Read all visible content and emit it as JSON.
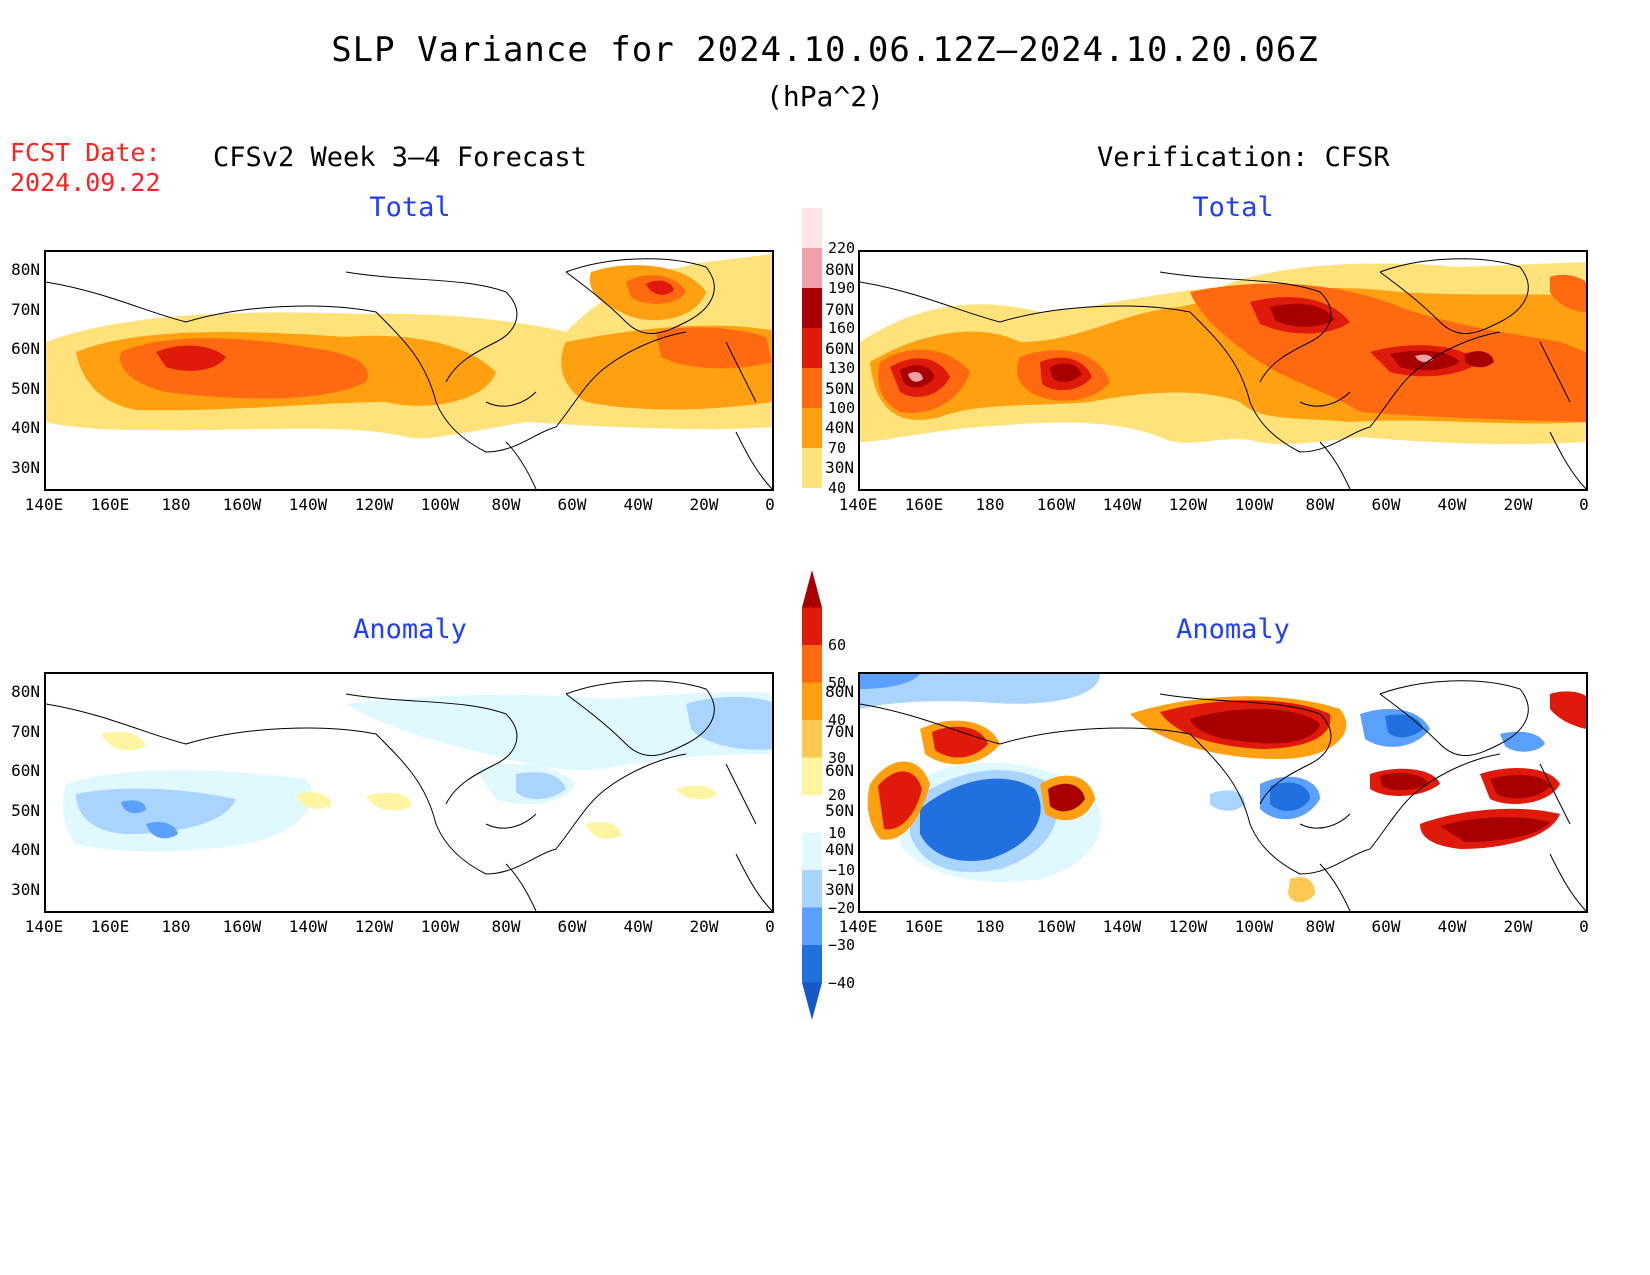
{
  "header": {
    "title": "SLP Variance for 2024.10.06.12Z–2024.10.20.06Z",
    "units": "(hPa^2)",
    "fcst_date_label": "FCST Date:",
    "fcst_date_value": "2024.09.22",
    "left_column": "CFSv2 Week 3–4 Forecast",
    "right_column": "Verification: CFSR"
  },
  "panels": {
    "forecast_total": "Total",
    "verification_total": "Total",
    "forecast_anomaly": "Anomaly",
    "verification_anomaly": "Anomaly"
  },
  "axes": {
    "lat_labels": [
      "80N",
      "70N",
      "60N",
      "50N",
      "40N",
      "30N"
    ],
    "lon_labels": [
      "140E",
      "160E",
      "180",
      "160W",
      "140W",
      "120W",
      "100W",
      "80W",
      "60W",
      "40W",
      "20W",
      "0"
    ]
  },
  "colorbars": {
    "total": {
      "labels": [
        "220",
        "190",
        "160",
        "130",
        "100",
        "70",
        "40"
      ],
      "colors": [
        "#fde2e6",
        "#f0a0a8",
        "#a80000",
        "#e01a0a",
        "#ff6a10",
        "#ffa010",
        "#ffe27a"
      ]
    },
    "anomaly": {
      "labels": [
        "60",
        "50",
        "40",
        "30",
        "20",
        "10",
        "−10",
        "−20",
        "−30",
        "−40"
      ],
      "colors": [
        "#a80000",
        "#e01a0a",
        "#ff6a10",
        "#ffa010",
        "#ffc850",
        "#fff5a0",
        "#ffffff",
        "#e0f8ff",
        "#a8d4ff",
        "#5aa0ff",
        "#2070e0",
        "#1458c8"
      ]
    }
  }
}
